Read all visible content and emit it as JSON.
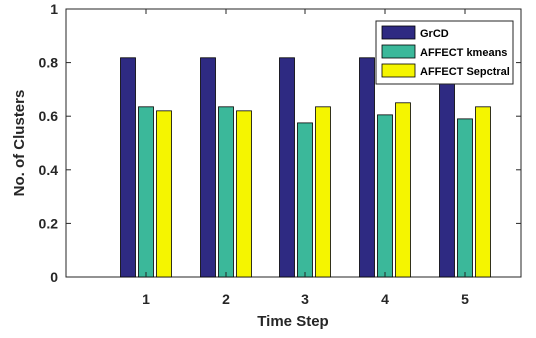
{
  "chart_data": {
    "type": "bar",
    "categories": [
      "1",
      "2",
      "3",
      "4",
      "5"
    ],
    "series": [
      {
        "name": "GrCD",
        "color": "#2e2a82",
        "values": [
          0.818,
          0.818,
          0.818,
          0.818,
          0.818
        ]
      },
      {
        "name": "AFFECT kmeans",
        "color": "#3bb89a",
        "values": [
          0.635,
          0.635,
          0.575,
          0.605,
          0.59
        ]
      },
      {
        "name": "AFFECT Sepctral",
        "color": "#f5f500",
        "values": [
          0.62,
          0.62,
          0.635,
          0.65,
          0.635
        ]
      }
    ],
    "xlabel": "Time Step",
    "ylabel": "No. of Clusters",
    "ylim": [
      0,
      1
    ],
    "yticks": [
      "0",
      "0.2",
      "0.4",
      "0.6",
      "0.8",
      "1"
    ],
    "grid": false,
    "legend_position": "top-right"
  }
}
